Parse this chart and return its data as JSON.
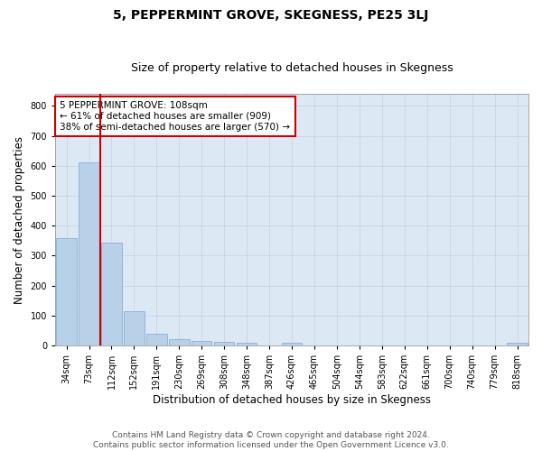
{
  "title": "5, PEPPERMINT GROVE, SKEGNESS, PE25 3LJ",
  "subtitle": "Size of property relative to detached houses in Skegness",
  "xlabel": "Distribution of detached houses by size in Skegness",
  "ylabel": "Number of detached properties",
  "categories": [
    "34sqm",
    "73sqm",
    "112sqm",
    "152sqm",
    "191sqm",
    "230sqm",
    "269sqm",
    "308sqm",
    "348sqm",
    "387sqm",
    "426sqm",
    "465sqm",
    "504sqm",
    "544sqm",
    "583sqm",
    "622sqm",
    "661sqm",
    "700sqm",
    "740sqm",
    "779sqm",
    "818sqm"
  ],
  "values": [
    357,
    610,
    343,
    115,
    40,
    22,
    16,
    12,
    8,
    0,
    10,
    0,
    0,
    0,
    0,
    0,
    0,
    0,
    0,
    0,
    8
  ],
  "bar_color": "#b8d0e8",
  "bar_edge_color": "#7aa8cc",
  "vline_x_index": 2,
  "vline_color": "#cc0000",
  "annotation_text": "5 PEPPERMINT GROVE: 108sqm\n← 61% of detached houses are smaller (909)\n38% of semi-detached houses are larger (570) →",
  "annotation_box_facecolor": "#ffffff",
  "annotation_box_edgecolor": "#cc0000",
  "ylim": [
    0,
    840
  ],
  "yticks": [
    0,
    100,
    200,
    300,
    400,
    500,
    600,
    700,
    800
  ],
  "footer_text": "Contains HM Land Registry data © Crown copyright and database right 2024.\nContains public sector information licensed under the Open Government Licence v3.0.",
  "plot_bg_color": "#dde8f5",
  "title_fontsize": 10,
  "subtitle_fontsize": 9,
  "axis_label_fontsize": 8.5,
  "tick_fontsize": 7,
  "annotation_fontsize": 7.5,
  "footer_fontsize": 6.5
}
